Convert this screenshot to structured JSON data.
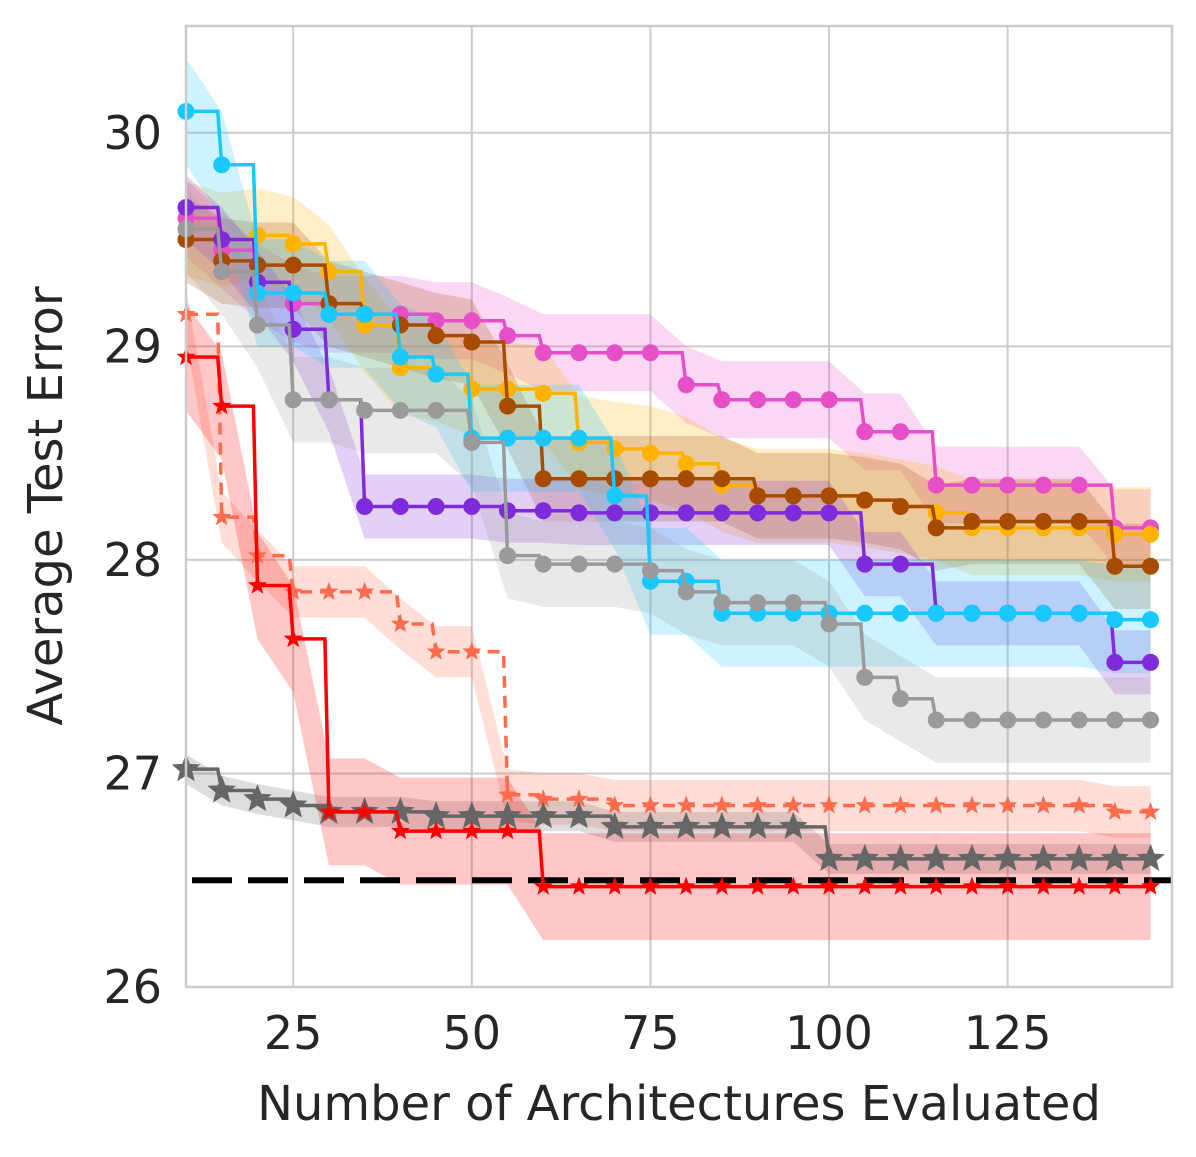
{
  "chart_data": {
    "type": "line",
    "title": "",
    "xlabel": "Number of Architectures Evaluated",
    "ylabel": "Average Test Error",
    "xlim": [
      10,
      148
    ],
    "ylim": [
      26,
      30.5
    ],
    "xticks": [
      25,
      50,
      75,
      100,
      125
    ],
    "yticks": [
      26,
      27,
      28,
      29,
      30
    ],
    "grid": true,
    "legend": "none",
    "reference_line": {
      "y": 26.5,
      "color": "#000000",
      "style": "dashed"
    },
    "series": [
      {
        "name": "pink",
        "color": "#e64fc7",
        "marker": "circle",
        "style": "solid",
        "band": 0.18,
        "x": [
          10,
          15,
          20,
          25,
          30,
          35,
          40,
          45,
          50,
          55,
          60,
          65,
          70,
          75,
          80,
          85,
          90,
          95,
          100,
          105,
          110,
          115,
          120,
          125,
          130,
          135,
          140,
          145
        ],
        "y": [
          29.6,
          29.45,
          29.3,
          29.2,
          29.15,
          29.15,
          29.15,
          29.12,
          29.12,
          29.05,
          28.97,
          28.97,
          28.97,
          28.97,
          28.82,
          28.75,
          28.75,
          28.75,
          28.75,
          28.6,
          28.6,
          28.35,
          28.35,
          28.35,
          28.35,
          28.35,
          28.15,
          28.15
        ]
      },
      {
        "name": "orange",
        "color": "#ffb300",
        "marker": "circle",
        "style": "solid",
        "band": 0.22,
        "x": [
          10,
          15,
          20,
          25,
          30,
          35,
          40,
          45,
          50,
          55,
          60,
          65,
          70,
          75,
          80,
          85,
          90,
          95,
          100,
          105,
          110,
          115,
          120,
          125,
          130,
          135,
          140,
          145
        ],
        "y": [
          29.55,
          29.5,
          29.52,
          29.48,
          29.35,
          29.1,
          28.9,
          28.87,
          28.8,
          28.8,
          28.78,
          28.55,
          28.52,
          28.5,
          28.45,
          28.35,
          28.3,
          28.3,
          28.3,
          28.28,
          28.25,
          28.22,
          28.15,
          28.15,
          28.15,
          28.15,
          28.12,
          28.12
        ]
      },
      {
        "name": "brown",
        "color": "#a64b00",
        "marker": "circle",
        "style": "solid",
        "band": 0.2,
        "x": [
          10,
          15,
          20,
          25,
          30,
          35,
          40,
          45,
          50,
          55,
          60,
          65,
          70,
          75,
          80,
          85,
          90,
          95,
          100,
          105,
          110,
          115,
          120,
          125,
          130,
          135,
          140,
          145
        ],
        "y": [
          29.5,
          29.4,
          29.38,
          29.38,
          29.2,
          29.15,
          29.1,
          29.05,
          29.02,
          28.72,
          28.38,
          28.38,
          28.38,
          28.38,
          28.38,
          28.38,
          28.3,
          28.3,
          28.3,
          28.28,
          28.25,
          28.15,
          28.18,
          28.18,
          28.18,
          28.18,
          27.97,
          27.97
        ]
      },
      {
        "name": "purple",
        "color": "#7f2bdb",
        "marker": "circle",
        "style": "solid",
        "band": 0.15,
        "x": [
          10,
          15,
          20,
          25,
          30,
          35,
          40,
          45,
          50,
          55,
          60,
          65,
          70,
          75,
          80,
          85,
          90,
          95,
          100,
          105,
          110,
          115,
          120,
          125,
          130,
          135,
          140,
          145
        ],
        "y": [
          29.65,
          29.5,
          29.3,
          29.08,
          28.75,
          28.25,
          28.25,
          28.25,
          28.25,
          28.23,
          28.23,
          28.22,
          28.22,
          28.22,
          28.22,
          28.22,
          28.22,
          28.22,
          28.22,
          27.98,
          27.98,
          27.75,
          27.75,
          27.75,
          27.75,
          27.75,
          27.52,
          27.52
        ]
      },
      {
        "name": "cyan",
        "color": "#19c8ff",
        "marker": "circle",
        "style": "solid",
        "band": 0.25,
        "x": [
          10,
          15,
          20,
          25,
          30,
          35,
          40,
          45,
          50,
          55,
          60,
          65,
          70,
          75,
          80,
          85,
          90,
          95,
          100,
          105,
          110,
          115,
          120,
          125,
          130,
          135,
          140,
          145
        ],
        "y": [
          30.1,
          29.85,
          29.25,
          29.25,
          29.15,
          29.15,
          28.95,
          28.87,
          28.57,
          28.57,
          28.57,
          28.57,
          28.3,
          27.9,
          27.9,
          27.75,
          27.75,
          27.75,
          27.75,
          27.75,
          27.75,
          27.75,
          27.75,
          27.75,
          27.75,
          27.75,
          27.72,
          27.72
        ]
      },
      {
        "name": "gray",
        "color": "#9a9a9a",
        "marker": "circle",
        "style": "solid",
        "band": 0.2,
        "x": [
          10,
          15,
          20,
          25,
          30,
          35,
          40,
          45,
          50,
          55,
          60,
          65,
          70,
          75,
          80,
          85,
          90,
          95,
          100,
          105,
          110,
          115,
          120,
          125,
          130,
          135,
          140,
          145
        ],
        "y": [
          29.55,
          29.35,
          29.1,
          28.75,
          28.75,
          28.7,
          28.7,
          28.7,
          28.55,
          28.02,
          27.98,
          27.98,
          27.98,
          27.95,
          27.85,
          27.8,
          27.8,
          27.8,
          27.7,
          27.45,
          27.35,
          27.25,
          27.25,
          27.25,
          27.25,
          27.25,
          27.25,
          27.25
        ]
      },
      {
        "name": "salmon",
        "color": "#ff6b4d",
        "marker": "star",
        "style": "dashed",
        "band": 0.12,
        "x": [
          10,
          15,
          20,
          25,
          30,
          35,
          40,
          45,
          50,
          55,
          60,
          65,
          70,
          75,
          80,
          85,
          90,
          95,
          100,
          105,
          110,
          115,
          120,
          125,
          130,
          135,
          140,
          145
        ],
        "y": [
          29.15,
          28.2,
          28.02,
          27.85,
          27.85,
          27.85,
          27.7,
          27.57,
          27.57,
          26.9,
          26.88,
          26.88,
          26.85,
          26.85,
          26.85,
          26.85,
          26.85,
          26.85,
          26.85,
          26.85,
          26.85,
          26.85,
          26.85,
          26.85,
          26.85,
          26.85,
          26.82,
          26.82
        ]
      },
      {
        "name": "dark-gray",
        "color": "#666666",
        "marker": "star",
        "style": "solid",
        "band": 0.07,
        "x": [
          10,
          15,
          20,
          25,
          30,
          35,
          40,
          45,
          50,
          55,
          60,
          65,
          70,
          75,
          80,
          85,
          90,
          95,
          100,
          105,
          110,
          115,
          120,
          125,
          130,
          135,
          140,
          145
        ],
        "y": [
          27.02,
          26.92,
          26.88,
          26.85,
          26.82,
          26.82,
          26.82,
          26.8,
          26.8,
          26.8,
          26.8,
          26.8,
          26.75,
          26.75,
          26.75,
          26.75,
          26.75,
          26.75,
          26.6,
          26.6,
          26.6,
          26.6,
          26.6,
          26.6,
          26.6,
          26.6,
          26.6,
          26.6
        ]
      },
      {
        "name": "red",
        "color": "#ff0000",
        "marker": "star",
        "style": "solid",
        "band": 0.25,
        "x": [
          10,
          15,
          20,
          25,
          30,
          35,
          40,
          45,
          50,
          55,
          60,
          65,
          70,
          75,
          80,
          85,
          90,
          95,
          100,
          105,
          110,
          115,
          120,
          125,
          130,
          135,
          140,
          145
        ],
        "y": [
          28.95,
          28.72,
          27.88,
          27.63,
          26.82,
          26.82,
          26.73,
          26.73,
          26.73,
          26.73,
          26.47,
          26.47,
          26.47,
          26.47,
          26.47,
          26.47,
          26.47,
          26.47,
          26.47,
          26.47,
          26.47,
          26.47,
          26.47,
          26.47,
          26.47,
          26.47,
          26.47,
          26.47
        ]
      }
    ]
  }
}
